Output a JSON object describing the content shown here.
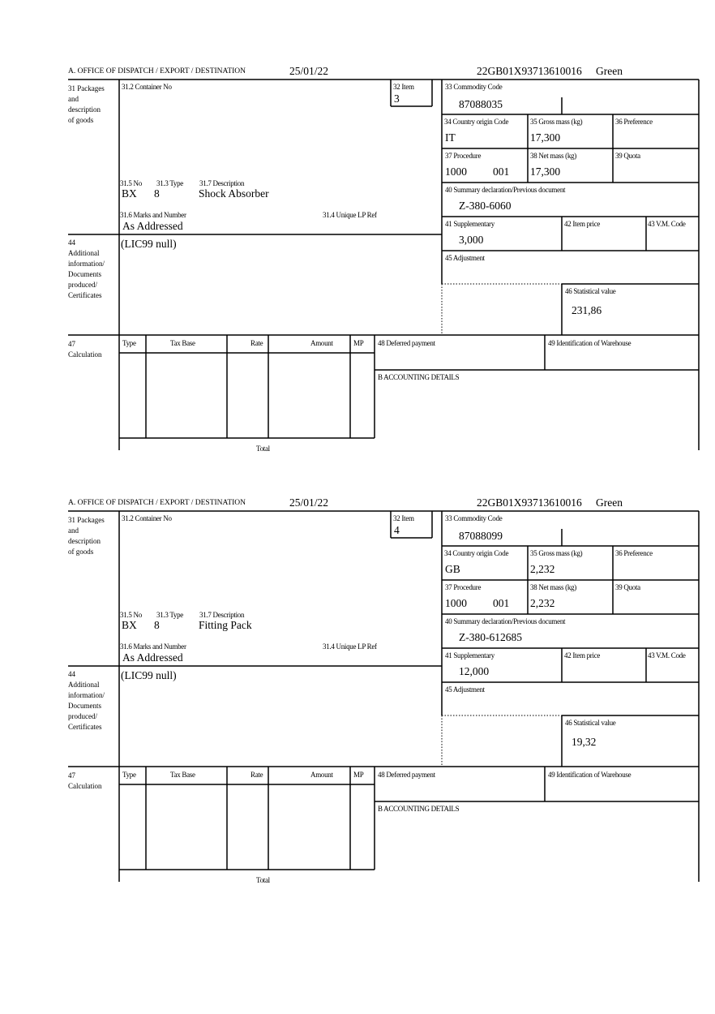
{
  "labels": {
    "office": "A.  OFFICE OF DISPATCH / EXPORT / DESTINATION",
    "packages": "31 Packages\nand\ndescription\nof goods",
    "container_no": "31.2 Container No",
    "item": "32 Item",
    "no": "31.5 No",
    "type": "31.3 Type",
    "description": "31.7 Description",
    "marks": "31.6 Marks and Number",
    "unique_lp": "31.4 Unique LP Ref",
    "additional": "44\nAdditional\ninformation/\nDocuments\nproduced/\nCertificates",
    "commodity_code": "33 Commodity Code",
    "country_origin": "34 Country origin Code",
    "gross_mass": "35 Gross mass (kg)",
    "preference": "36 Preference",
    "procedure": "37 Procedure",
    "net_mass": "38 Net mass (kg)",
    "quota": "39 Quota",
    "summary_decl": "40 Summary declaration/Previous document",
    "supplementary": "41 Supplementary",
    "item_price": "42 Item price",
    "vm_code": "43 V.M. Code",
    "adjustment": "45 Adjustment",
    "statistical_value": "46 Statistical value",
    "calculation": "47\nCalculation",
    "calc_type": "Type",
    "calc_tax_base": "Tax Base",
    "calc_rate": "Rate",
    "calc_amount": "Amount",
    "calc_mp": "MP",
    "total": "Total",
    "deferred_payment": "48 Deferred payment",
    "warehouse": "49 Identification of Warehouse",
    "accounting": "B ACCOUNTING DETAILS"
  },
  "items": [
    {
      "date": "25/01/22",
      "reference": "22GB01X93713610016",
      "route": "Green",
      "item_no": "3",
      "pkg_kind": "BX",
      "pkg_count": "8",
      "description": "Shock Absorber",
      "marks": "As Addressed",
      "additional_info": "(LIC99 null)",
      "commodity_code": "87088035",
      "country_origin": "IT",
      "gross_mass": "17,300",
      "procedure": "1000",
      "procedure_additional": "001",
      "net_mass": "17,300",
      "previous_document": "Z-380-6060",
      "supplementary": "3,000",
      "statistical_value": "231,86"
    },
    {
      "date": "25/01/22",
      "reference": "22GB01X93713610016",
      "route": "Green",
      "item_no": "4",
      "pkg_kind": "BX",
      "pkg_count": "8",
      "description": "Fitting Pack",
      "marks": "As Addressed",
      "additional_info": "(LIC99 null)",
      "commodity_code": "87088099",
      "country_origin": "GB",
      "gross_mass": "2,232",
      "procedure": "1000",
      "procedure_additional": "001",
      "net_mass": "2,232",
      "previous_document": "Z-380-612685",
      "supplementary": "12,000",
      "statistical_value": "19,32"
    }
  ]
}
